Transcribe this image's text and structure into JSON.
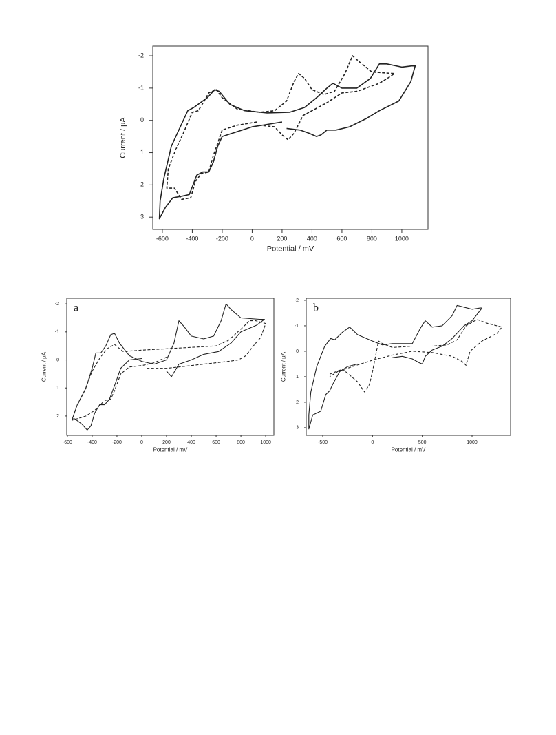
{
  "chart_data": [
    {
      "type": "line",
      "xlabel": "Potential / mV",
      "ylabel": "Current / μA",
      "xlim": [
        -664,
        1175
      ],
      "ylim": [
        3.38,
        -2.3
      ],
      "xticks": [
        -600,
        -400,
        -200,
        0,
        200,
        400,
        600,
        800,
        1000
      ],
      "yticks": [
        -2,
        -1,
        0,
        1,
        2,
        3
      ],
      "series": [
        {
          "color": "#222222",
          "dashed": false,
          "x": [
            200,
            0,
            -200,
            -230,
            -260,
            -290,
            -330,
            -370,
            -420,
            -470,
            -530,
            -580,
            -620,
            -615,
            -590,
            -540,
            -480,
            -430,
            -390,
            -360,
            -300,
            -250,
            -220,
            -150,
            -50,
            100,
            250,
            350,
            430,
            500,
            540,
            600,
            700,
            790,
            850,
            900,
            1000,
            1090,
            1060,
            980,
            850,
            760,
            650,
            560,
            500,
            460,
            430,
            380,
            320,
            230
          ],
          "values": [
            0.05,
            0.2,
            0.5,
            0.8,
            1.3,
            1.6,
            1.6,
            1.7,
            2.3,
            2.35,
            2.4,
            2.7,
            3.05,
            2.5,
            1.8,
            0.8,
            0.2,
            -0.3,
            -0.4,
            -0.5,
            -0.7,
            -0.95,
            -0.9,
            -0.5,
            -0.3,
            -0.23,
            -0.25,
            -0.4,
            -0.7,
            -1.0,
            -1.15,
            -1.0,
            -1.0,
            -1.3,
            -1.75,
            -1.75,
            -1.65,
            -1.7,
            -1.2,
            -0.6,
            -0.3,
            -0.05,
            0.2,
            0.3,
            0.3,
            0.45,
            0.5,
            0.4,
            0.3,
            0.25
          ]
        },
        {
          "color": "#222222",
          "dashed": true,
          "x": [
            30,
            -100,
            -200,
            -260,
            -290,
            -340,
            -380,
            -410,
            -470,
            -520,
            -570,
            -560,
            -510,
            -460,
            -400,
            -360,
            -320,
            -290,
            -240,
            -200,
            -100,
            50,
            150,
            230,
            280,
            310,
            350,
            400,
            480,
            550,
            620,
            670,
            720,
            800,
            950,
            920,
            850,
            700,
            600,
            500,
            400,
            340,
            280,
            240,
            200,
            150,
            50
          ],
          "values": [
            0.05,
            0.15,
            0.3,
            1.1,
            1.6,
            1.65,
            1.9,
            2.4,
            2.45,
            2.1,
            2.1,
            1.5,
            0.9,
            0.4,
            -0.25,
            -0.3,
            -0.6,
            -0.85,
            -0.95,
            -0.7,
            -0.35,
            -0.25,
            -0.3,
            -0.6,
            -1.2,
            -1.45,
            -1.3,
            -0.95,
            -0.8,
            -0.9,
            -1.45,
            -2.0,
            -1.8,
            -1.5,
            -1.45,
            -1.35,
            -1.15,
            -0.9,
            -0.85,
            -0.55,
            -0.3,
            -0.15,
            0.4,
            0.6,
            0.45,
            0.2,
            0.15
          ]
        }
      ]
    },
    {
      "type": "line",
      "panel": "a",
      "xlabel": "Potential / mV",
      "ylabel": "Current / μA",
      "xlim": [
        -605,
        1066
      ],
      "ylim": [
        2.69,
        -2.2
      ],
      "xticks": [
        -600,
        -400,
        -200,
        0,
        200,
        400,
        600,
        800,
        1000
      ],
      "yticks": [
        -2,
        -1,
        0,
        1,
        2
      ],
      "series": [
        {
          "color": "#222222",
          "dashed": false,
          "x": [
            0,
            -100,
            -170,
            -210,
            -260,
            -300,
            -340,
            -380,
            -410,
            -440,
            -480,
            -540,
            -560,
            -520,
            -450,
            -400,
            -370,
            -330,
            -290,
            -250,
            -220,
            -180,
            -100,
            0,
            100,
            200,
            260,
            300,
            340,
            400,
            500,
            580,
            640,
            680,
            720,
            800,
            950,
            990,
            930,
            800,
            720,
            620,
            500,
            400,
            300,
            240,
            200
          ],
          "values": [
            -0.05,
            0,
            0.3,
            0.8,
            1.4,
            1.6,
            1.6,
            1.9,
            2.35,
            2.5,
            2.3,
            2.1,
            2.1,
            1.6,
            1.0,
            0.3,
            -0.25,
            -0.25,
            -0.5,
            -0.9,
            -0.95,
            -0.6,
            -0.15,
            0.05,
            0.15,
            0.0,
            -0.6,
            -1.4,
            -1.2,
            -0.85,
            -0.75,
            -0.85,
            -1.4,
            -2.0,
            -1.8,
            -1.5,
            -1.45,
            -1.45,
            -1.25,
            -1.0,
            -0.6,
            -0.3,
            -0.2,
            0.0,
            0.15,
            0.6,
            0.4
          ]
        },
        {
          "color": "#222222",
          "dashed": true,
          "x": [
            200,
            100,
            0,
            -100,
            -170,
            -220,
            -250,
            -300,
            -380,
            -450,
            -560,
            -530,
            -460,
            -400,
            -340,
            -280,
            -220,
            -150,
            0,
            200,
            400,
            600,
            700,
            800,
            870,
            920,
            1000,
            960,
            900,
            840,
            780,
            700,
            500,
            300,
            200,
            40
          ],
          "values": [
            -0.1,
            0.1,
            0.2,
            0.25,
            0.5,
            1.1,
            1.4,
            1.45,
            1.8,
            2.0,
            2.15,
            1.7,
            1.1,
            0.4,
            -0.05,
            -0.4,
            -0.55,
            -0.3,
            -0.35,
            -0.4,
            -0.45,
            -0.5,
            -0.7,
            -1.1,
            -1.4,
            -1.4,
            -1.3,
            -0.8,
            -0.5,
            -0.15,
            0.0,
            0.05,
            0.15,
            0.25,
            0.3,
            0.3
          ]
        }
      ]
    },
    {
      "type": "line",
      "panel": "b",
      "xlabel": "Potential / mV",
      "ylabel": "Current / μA",
      "xlim": [
        -666,
        1387
      ],
      "ylim": [
        3.3,
        -2.08
      ],
      "xticks": [
        -500,
        0,
        500,
        1000
      ],
      "yticks": [
        -2,
        -1,
        0,
        1,
        2,
        3
      ],
      "series": [
        {
          "color": "#222222",
          "dashed": false,
          "x": [
            200,
            300,
            400,
            470,
            500,
            530,
            600,
            700,
            800,
            920,
            1000,
            1100,
            1080,
            1000,
            900,
            850,
            800,
            700,
            600,
            530,
            480,
            400,
            200,
            100,
            0,
            -150,
            -230,
            -300,
            -380,
            -420,
            -480,
            -560,
            -620,
            -640,
            -640,
            -600,
            -520,
            -470,
            -430,
            -400,
            -330,
            -250,
            -150
          ],
          "values": [
            0.25,
            0.2,
            0.3,
            0.45,
            0.5,
            0.2,
            -0.05,
            -0.2,
            -0.5,
            -1.0,
            -1.2,
            -1.7,
            -1.7,
            -1.65,
            -1.75,
            -1.8,
            -1.4,
            -1.0,
            -0.95,
            -1.2,
            -0.9,
            -0.3,
            -0.3,
            -0.25,
            -0.4,
            -0.65,
            -0.95,
            -0.75,
            -0.45,
            -0.5,
            -0.2,
            0.6,
            1.6,
            2.5,
            3.05,
            2.5,
            2.35,
            1.7,
            1.55,
            1.3,
            0.8,
            0.6,
            0.5
          ]
        },
        {
          "color": "#222222",
          "dashed": true,
          "x": [
            -430,
            -300,
            -150,
            -80,
            -30,
            0,
            30,
            60,
            100,
            200,
            400,
            600,
            750,
            850,
            940,
            1050,
            1150,
            1300,
            1250,
            1100,
            980,
            940,
            900,
            800,
            600,
            400,
            200,
            0,
            -200,
            -350,
            -430
          ],
          "values": [
            0.9,
            0.7,
            1.2,
            1.6,
            1.3,
            0.8,
            0.2,
            -0.4,
            -0.3,
            -0.15,
            -0.2,
            -0.2,
            -0.25,
            -0.45,
            -1.0,
            -1.25,
            -1.1,
            -0.95,
            -0.7,
            -0.4,
            0.0,
            0.55,
            0.4,
            0.2,
            0.05,
            0.0,
            0.15,
            0.35,
            0.6,
            0.8,
            1.0
          ]
        }
      ]
    }
  ]
}
